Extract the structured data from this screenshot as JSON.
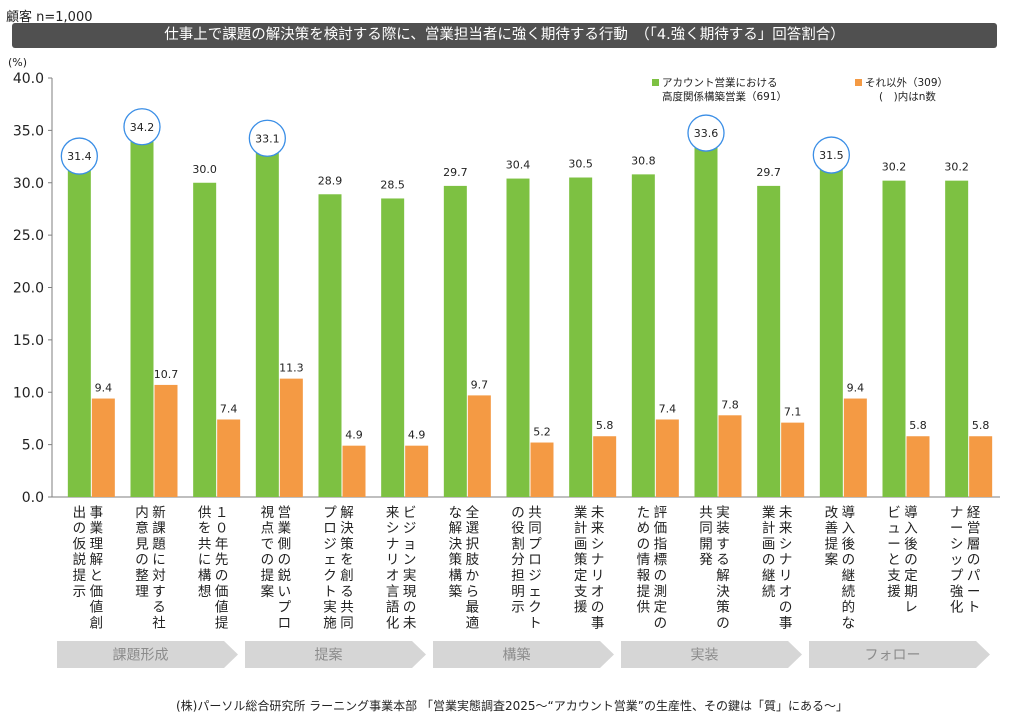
{
  "sample_label": "顧客 n=1,000",
  "title": "仕事上で課題の解決策を検討する際に、営業担当者に強く期待する行動　（「4.強く期待する」回答割合）",
  "source": "(株)パーソル総合研究所 ラーニング事業本部 「営業実態調査2025～“アカウント営業”の生産性、その鍵は「質」にある～」",
  "colors": {
    "series_a": "#7dc142",
    "series_b": "#f49a44",
    "highlight": "#3a8ee6",
    "phase": "#d6d6d6",
    "phase_text": "#8c8c8c",
    "axis": "#7f7f7f"
  },
  "chart_data": {
    "type": "bar",
    "unit_label": "(%)",
    "ylim": [
      0,
      40
    ],
    "yticks": [
      "0.0",
      "5.0",
      "10.0",
      "15.0",
      "20.0",
      "25.0",
      "30.0",
      "35.0",
      "40.0"
    ],
    "grid": false,
    "legend_position": "top-right",
    "legend_note": "(　)内はn数",
    "categories": [
      "事業理解と価値創出の仮説提示",
      "新課題に対する社内意見の整理",
      "10年先の価値提供を共に構想",
      "営業側の鋭いプロ視点での提案",
      "解決策を創る共同プロジェクト実施",
      "ビジョン実現の未来シナリオ言語化",
      "全選択肢から最適な解決策構築",
      "共同プロジェクトの役割分担明示",
      "未来シナリオの事業計画策定支援",
      "評価指標の測定のための情報提供",
      "実装する解決策の共同開発",
      "未来シナリオの事業計画の継続",
      "導入後の継続的な改善提案",
      "導入後の定期レビューと支援",
      "経営層のパートナーシップ強化"
    ],
    "category_lines": [
      [
        "事業理解と価値創",
        "出の仮説提示"
      ],
      [
        "新課題に対する社",
        "内意見の整理"
      ],
      [
        "１０年先の価値提",
        "供を共に構想"
      ],
      [
        "営業側の鋭いプロ",
        "視点での提案"
      ],
      [
        "解決策を創る共同",
        "プロジェクト実施"
      ],
      [
        "ビジョン実現の未",
        "来シナリオ言語化"
      ],
      [
        "全選択肢から最適",
        "な解決策構築"
      ],
      [
        "共同プロジェクト",
        "の役割分担明示"
      ],
      [
        "未来シナリオの事",
        "業計画策定支援"
      ],
      [
        "評価指標の測定の",
        "ための情報提供"
      ],
      [
        "実装する解決策の",
        "共同開発"
      ],
      [
        "未来シナリオの事",
        "業計画の継続"
      ],
      [
        "導入後の継続的な",
        "改善提案"
      ],
      [
        "導入後の定期レ",
        "ビューと支援"
      ],
      [
        "経営層のパート",
        "ナーシップ強化"
      ]
    ],
    "series": [
      {
        "name": "アカウント営業における高度関係構築営業（691）",
        "legend_lines": [
          "アカウント営業における",
          "高度関係構築営業（691）"
        ],
        "values": [
          31.4,
          34.2,
          30.0,
          33.1,
          28.9,
          28.5,
          29.7,
          30.4,
          30.5,
          30.8,
          33.6,
          29.7,
          31.5,
          30.2,
          30.2
        ],
        "labels": [
          "31.4",
          "34.2",
          "30.0",
          "33.1",
          "28.9",
          "28.5",
          "29.7",
          "30.4",
          "30.5",
          "30.8",
          "33.6",
          "29.7",
          "31.5",
          "30.2",
          "30.2"
        ]
      },
      {
        "name": "それ以外（309）",
        "legend_lines": [
          "それ以外（309）"
        ],
        "values": [
          9.4,
          10.7,
          7.4,
          11.3,
          4.9,
          4.9,
          9.7,
          5.2,
          5.8,
          7.4,
          7.8,
          7.1,
          9.4,
          5.8,
          5.8
        ],
        "labels": [
          "9.4",
          "10.7",
          "7.4",
          "11.3",
          "4.9",
          "4.9",
          "9.7",
          "5.2",
          "5.8",
          "7.4",
          "7.8",
          "7.1",
          "9.4",
          "5.8",
          "5.8"
        ]
      }
    ],
    "highlighted_categories": [
      0,
      1,
      3,
      10,
      12
    ],
    "phases": [
      {
        "label": "課題形成",
        "start": 0,
        "end": 2
      },
      {
        "label": "提案",
        "start": 3,
        "end": 5
      },
      {
        "label": "構築",
        "start": 6,
        "end": 8
      },
      {
        "label": "実装",
        "start": 9,
        "end": 11
      },
      {
        "label": "フォロー",
        "start": 12,
        "end": 14
      }
    ]
  }
}
